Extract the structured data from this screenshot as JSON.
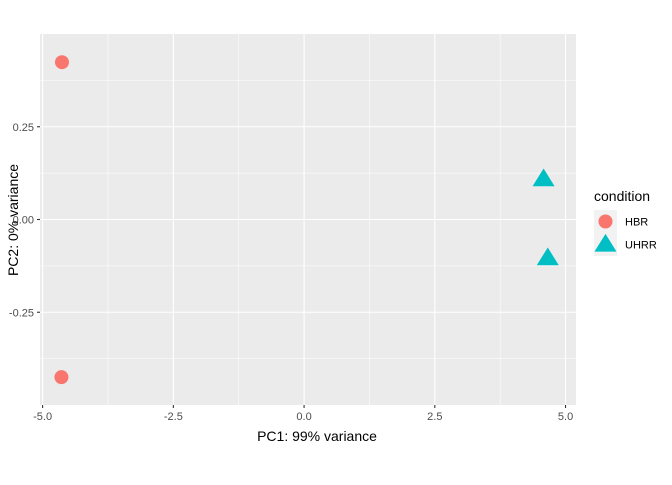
{
  "chart_data": {
    "type": "scatter",
    "xlabel": "PC1: 99% variance",
    "ylabel": "PC2: 0% variance",
    "xlim": [
      -5.05,
      5.2
    ],
    "ylim": [
      -0.5,
      0.5
    ],
    "x_ticks": [
      -5.0,
      -2.5,
      0.0,
      2.5,
      5.0
    ],
    "x_tick_labels": [
      "-5.0",
      "-2.5",
      "0.0",
      "2.5",
      "5.0"
    ],
    "y_ticks": [
      0.25,
      0.0,
      -0.25
    ],
    "y_tick_labels": [
      "0.25",
      "0.00",
      "-0.25"
    ],
    "grid": true,
    "legend_title": "condition",
    "legend_position": "right",
    "series": [
      {
        "name": "HBR",
        "shape": "circle",
        "color": "#F8766D",
        "points": [
          {
            "x": -4.63,
            "y": 0.424
          },
          {
            "x": -4.64,
            "y": -0.425
          }
        ]
      },
      {
        "name": "UHRR",
        "shape": "triangle",
        "color": "#00BFC4",
        "points": [
          {
            "x": 4.58,
            "y": 0.109
          },
          {
            "x": 4.66,
            "y": -0.104
          }
        ]
      }
    ]
  }
}
